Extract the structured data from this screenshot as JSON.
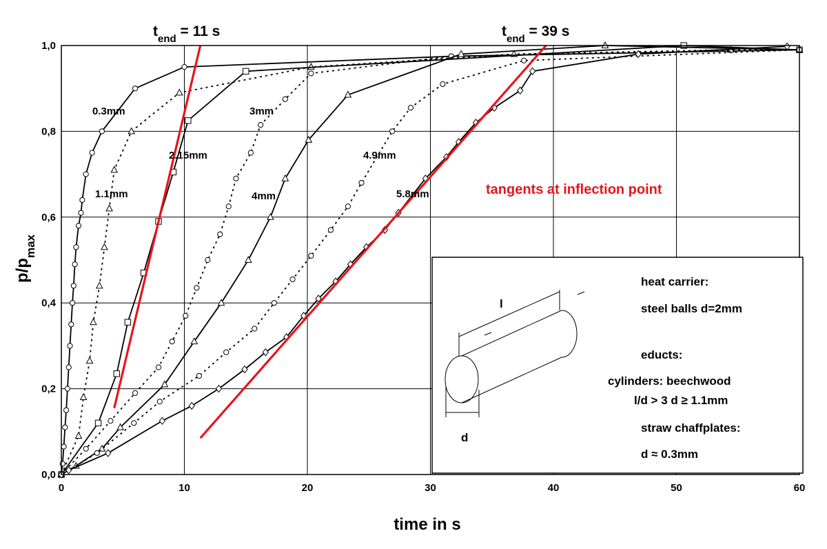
{
  "chart_data": {
    "type": "line",
    "xlabel": "time in s",
    "ylabel": {
      "text": "p/p",
      "sub": "max"
    },
    "xlim": [
      0,
      60
    ],
    "ylim": [
      0,
      1
    ],
    "xticks": [
      0,
      10,
      20,
      30,
      40,
      50,
      60
    ],
    "yticks": [
      {
        "value": 0,
        "label": "0,0"
      },
      {
        "value": 0.2,
        "label": "0,2"
      },
      {
        "value": 0.4,
        "label": "0,4"
      },
      {
        "value": 0.6,
        "label": "0,6"
      },
      {
        "value": 0.8,
        "label": "0,8"
      },
      {
        "value": 1,
        "label": "1,0"
      }
    ],
    "grid": true,
    "series": [
      {
        "name": "0.3mm",
        "color": "#000000",
        "marker": "circle",
        "dashed": false,
        "x": [
          0,
          0.1,
          0.2,
          0.3,
          0.4,
          0.5,
          0.6,
          0.7,
          0.8,
          0.9,
          1.0,
          1.1,
          1.2,
          1.4,
          1.6,
          1.7,
          2.0,
          2.5,
          3.3,
          6,
          10,
          31.7,
          60
        ],
        "values": [
          0,
          0.025,
          0.065,
          0.11,
          0.15,
          0.2,
          0.25,
          0.3,
          0.35,
          0.4,
          0.44,
          0.49,
          0.53,
          0.58,
          0.61,
          0.64,
          0.7,
          0.75,
          0.8,
          0.9,
          0.95,
          0.975,
          0.99
        ]
      },
      {
        "name": "1.1mm",
        "color": "#000000",
        "marker": "triangle",
        "dashed": true,
        "x": [
          0,
          1.4,
          1.8,
          2.3,
          2.6,
          3.1,
          3.5,
          3.9,
          4.3,
          5.7,
          9.6,
          20.3,
          36.8,
          54.4,
          60
        ],
        "values": [
          0,
          0.09,
          0.18,
          0.265,
          0.355,
          0.44,
          0.53,
          0.62,
          0.71,
          0.8,
          0.89,
          0.95,
          0.98,
          0.99,
          0.99
        ]
      },
      {
        "name": "2.15mm",
        "color": "#000000",
        "marker": "square",
        "dashed": false,
        "x": [
          0,
          3,
          4.5,
          5.4,
          6.7,
          7.9,
          9.1,
          10.3,
          15,
          50.6,
          60
        ],
        "values": [
          0,
          0.12,
          0.235,
          0.355,
          0.47,
          0.59,
          0.705,
          0.825,
          0.94,
          1.0,
          0.99
        ]
      },
      {
        "name": "3mm",
        "color": "#000000",
        "marker": "circle",
        "dashed": true,
        "x": [
          0,
          2,
          4,
          6,
          7.9,
          9,
          10.1,
          11,
          11.9,
          12.9,
          13.6,
          14.2,
          15.4,
          16.2,
          18.2,
          20.3,
          31.7,
          60
        ],
        "values": [
          0,
          0.06,
          0.125,
          0.19,
          0.25,
          0.31,
          0.37,
          0.435,
          0.5,
          0.56,
          0.625,
          0.69,
          0.75,
          0.815,
          0.875,
          0.935,
          0.975,
          0.99
        ]
      },
      {
        "name": "4mm",
        "color": "#000000",
        "marker": "triangle",
        "dashed": false,
        "x": [
          0,
          1.2,
          3.3,
          4.8,
          8.4,
          10.8,
          13,
          15.2,
          17,
          18.2,
          20.1,
          23.3,
          32.5,
          44.2,
          60
        ],
        "values": [
          0,
          0.02,
          0.06,
          0.11,
          0.21,
          0.31,
          0.4,
          0.5,
          0.6,
          0.69,
          0.78,
          0.885,
          0.98,
          1.0,
          0.99
        ]
      },
      {
        "name": "4.9mm",
        "color": "#000000",
        "marker": "circle",
        "dashed": true,
        "x": [
          0,
          2.9,
          5.9,
          8,
          11.2,
          13.4,
          15.7,
          17.3,
          18.8,
          20.3,
          21.9,
          23.3,
          24.4,
          26.9,
          28.4,
          31,
          37.6,
          60
        ],
        "values": [
          0,
          0.05,
          0.12,
          0.17,
          0.23,
          0.285,
          0.34,
          0.4,
          0.455,
          0.51,
          0.57,
          0.625,
          0.68,
          0.8,
          0.855,
          0.91,
          0.965,
          0.99
        ]
      },
      {
        "name": "5.8mm",
        "color": "#000000",
        "marker": "diamond",
        "dashed": false,
        "x": [
          0,
          0.6,
          3.8,
          8.2,
          10.6,
          12.8,
          14.9,
          16.6,
          18.3,
          19.7,
          20.9,
          22.3,
          23.5,
          24.8,
          26.3,
          27.4,
          29.6,
          31.3,
          32.3,
          33.7,
          35.2,
          37.3,
          38.3,
          46.9,
          59
        ],
        "values": [
          0,
          0.01,
          0.05,
          0.125,
          0.16,
          0.2,
          0.245,
          0.285,
          0.32,
          0.37,
          0.41,
          0.45,
          0.49,
          0.53,
          0.57,
          0.61,
          0.69,
          0.74,
          0.775,
          0.82,
          0.855,
          0.895,
          0.94,
          0.98,
          0.998
        ]
      }
    ],
    "tangents": [
      {
        "color": "#e8141b",
        "x": [
          4.3,
          11.3
        ],
        "values": [
          0.155,
          1.0
        ]
      },
      {
        "color": "#e8141b",
        "x": [
          11.3,
          39.4
        ],
        "values": [
          0.085,
          1.0
        ]
      }
    ],
    "annotations": [
      {
        "base": "t",
        "sub": "end",
        "text": " = 11 s"
      },
      {
        "base": "t",
        "sub": "end",
        "text": " = 39 s"
      }
    ],
    "tangent_note": "tangents at inflection point",
    "inset": {
      "lines": [
        "heat carrier:",
        "steel balls d=2mm",
        "educts:",
        "cylinders: beechwood",
        "l/d > 3   d ≥ 1.1mm",
        "straw chaffplates:",
        "d ≈ 0.3mm"
      ],
      "length_label": "l",
      "diameter_label": "d"
    }
  }
}
